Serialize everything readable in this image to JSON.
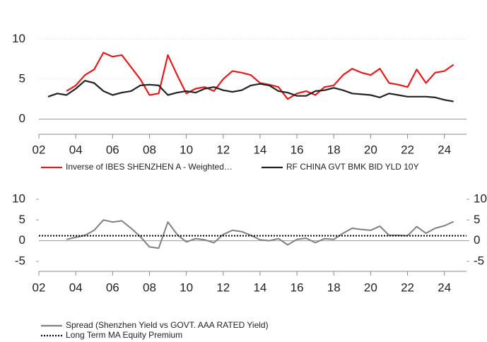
{
  "chart_data": [
    {
      "type": "line",
      "x": [
        2002.5,
        2003,
        2003.5,
        2004,
        2004.5,
        2005,
        2005.5,
        2006,
        2006.5,
        2007,
        2007.5,
        2008,
        2008.5,
        2009,
        2009.5,
        2010,
        2010.5,
        2011,
        2011.5,
        2012,
        2012.5,
        2013,
        2013.5,
        2014,
        2014.5,
        2015,
        2015.5,
        2016,
        2016.5,
        2017,
        2017.5,
        2018,
        2018.5,
        2019,
        2019.5,
        2020,
        2020.5,
        2021,
        2021.5,
        2022,
        2022.5,
        2023,
        2023.5,
        2024,
        2024.5
      ],
      "series": [
        {
          "name": "Inverse of IBES SHENZHEN A - Weighted…",
          "color": "#e41a1c",
          "values": [
            null,
            null,
            3.5,
            4.2,
            5.5,
            6.2,
            8.3,
            7.8,
            8.0,
            6.5,
            5.0,
            3.0,
            3.2,
            8.0,
            5.5,
            3.2,
            3.8,
            4.0,
            3.5,
            5.0,
            6.0,
            5.8,
            5.5,
            4.5,
            4.3,
            4.0,
            2.5,
            3.2,
            3.5,
            3.0,
            4.0,
            4.2,
            5.5,
            6.3,
            5.8,
            5.5,
            6.3,
            4.5,
            4.3,
            4.0,
            6.2,
            4.5,
            5.8,
            6.0,
            6.8
          ]
        },
        {
          "name": "RF CHINA GVT BMK BID YLD 10Y",
          "color": "#222222",
          "values": [
            2.8,
            3.2,
            3.0,
            3.8,
            4.8,
            4.5,
            3.5,
            3.0,
            3.3,
            3.5,
            4.2,
            4.3,
            4.2,
            3.0,
            3.3,
            3.5,
            3.3,
            3.8,
            4.0,
            3.6,
            3.4,
            3.6,
            4.2,
            4.4,
            4.2,
            3.5,
            3.3,
            2.9,
            2.9,
            3.5,
            3.6,
            3.9,
            3.6,
            3.2,
            3.1,
            3.0,
            2.7,
            3.2,
            3.0,
            2.8,
            2.8,
            2.8,
            2.7,
            2.4,
            2.2
          ]
        }
      ],
      "xlim": [
        2002,
        2025.2
      ],
      "xticks": [
        {
          "value": 2002,
          "label": "02"
        },
        {
          "value": 2004,
          "label": "04"
        },
        {
          "value": 2006,
          "label": "06"
        },
        {
          "value": 2008,
          "label": "08"
        },
        {
          "value": 2010,
          "label": "10"
        },
        {
          "value": 2012,
          "label": "12"
        },
        {
          "value": 2014,
          "label": "14"
        },
        {
          "value": 2016,
          "label": "16"
        },
        {
          "value": 2018,
          "label": "18"
        },
        {
          "value": 2020,
          "label": "20"
        },
        {
          "value": 2022,
          "label": "22"
        },
        {
          "value": 2024,
          "label": "24"
        }
      ],
      "ylim": [
        -1.9,
        14
      ],
      "yticks": [
        0,
        5,
        10
      ],
      "grid": true
    },
    {
      "type": "line",
      "x": [
        2003.5,
        2004,
        2004.5,
        2005,
        2005.5,
        2006,
        2006.5,
        2007,
        2007.5,
        2008,
        2008.5,
        2009,
        2009.5,
        2010,
        2010.5,
        2011,
        2011.5,
        2012,
        2012.5,
        2013,
        2013.5,
        2014,
        2014.5,
        2015,
        2015.5,
        2016,
        2016.5,
        2017,
        2017.5,
        2018,
        2018.5,
        2019,
        2019.5,
        2020,
        2020.5,
        2021,
        2021.5,
        2022,
        2022.5,
        2023,
        2023.5,
        2024,
        2024.5
      ],
      "series": [
        {
          "name": "Spread (Shenzhen Yield vs GOVT. AAA RATED Yield)",
          "color": "#808080",
          "values": [
            0.3,
            0.8,
            1.3,
            2.5,
            5.0,
            4.5,
            4.8,
            3.0,
            1.0,
            -1.5,
            -1.8,
            4.5,
            1.5,
            -0.3,
            0.5,
            0.2,
            -0.5,
            1.5,
            2.5,
            2.2,
            1.3,
            0.2,
            0.0,
            0.5,
            -1.0,
            0.3,
            0.6,
            -0.5,
            0.5,
            0.3,
            1.8,
            3.0,
            2.7,
            2.5,
            3.5,
            1.3,
            1.3,
            1.2,
            3.4,
            1.8,
            3.0,
            3.6,
            4.6
          ]
        },
        {
          "name": "Long Term MA Equity Premium",
          "color": "#000000",
          "dotted": true,
          "value": 1.2
        }
      ],
      "xlim": [
        2002,
        2025.2
      ],
      "xticks": [
        {
          "value": 2002,
          "label": "02"
        },
        {
          "value": 2004,
          "label": "04"
        },
        {
          "value": 2006,
          "label": "06"
        },
        {
          "value": 2008,
          "label": "08"
        },
        {
          "value": 2010,
          "label": "10"
        },
        {
          "value": 2012,
          "label": "12"
        },
        {
          "value": 2014,
          "label": "14"
        },
        {
          "value": 2016,
          "label": "16"
        },
        {
          "value": 2018,
          "label": "18"
        },
        {
          "value": 2020,
          "label": "20"
        },
        {
          "value": 2022,
          "label": "22"
        },
        {
          "value": 2024,
          "label": "24"
        }
      ],
      "ylim": [
        -7.4,
        11.7
      ],
      "yticks": [
        -5,
        0,
        5,
        10
      ],
      "y2lim": [
        -7.4,
        11.7
      ],
      "y2ticks": [
        -5,
        0,
        5,
        10
      ]
    }
  ]
}
